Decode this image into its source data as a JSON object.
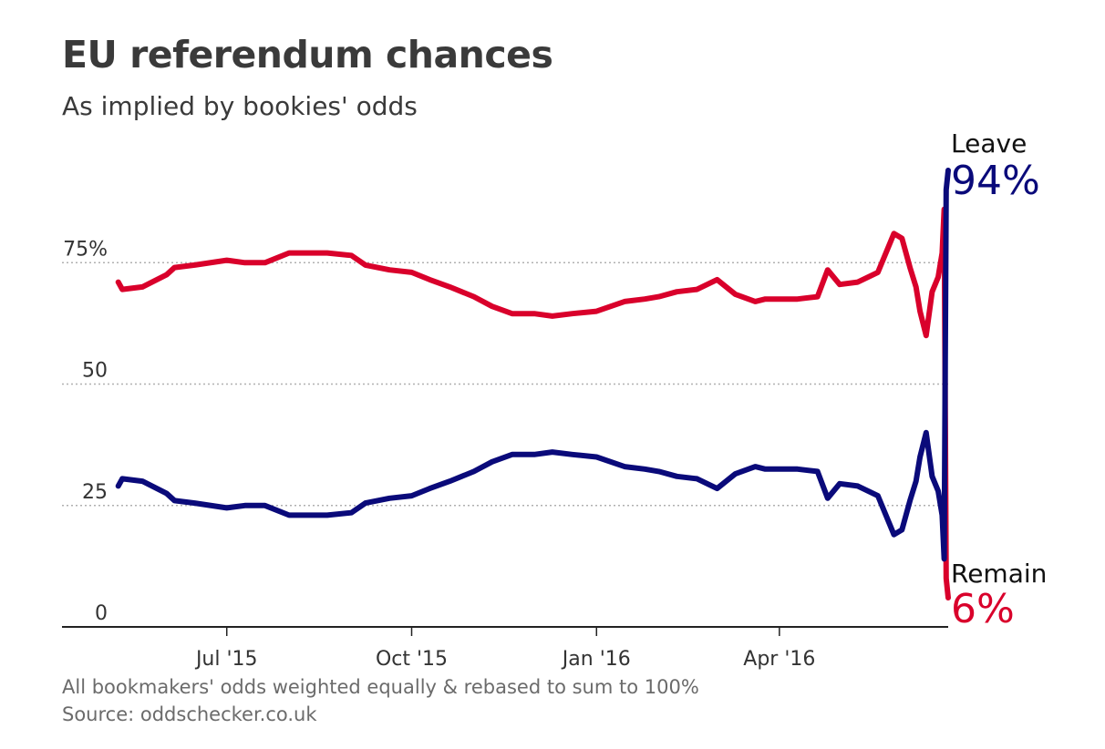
{
  "title": "EU referendum chances",
  "subtitle": "As implied by bookies' odds",
  "footnote": "All bookmakers' odds weighted equally & rebased to sum to 100%",
  "source": "Source: oddschecker.co.uk",
  "colors": {
    "leave": "#0a0a7a",
    "remain": "#d9002b",
    "grid": "#b0b0b0",
    "axis": "#222222"
  },
  "chart_data": {
    "type": "line",
    "title": "EU referendum chances",
    "subtitle": "As implied by bookies' odds",
    "xlabel": "",
    "ylabel": "",
    "x_type": "date",
    "xlim": [
      "2015-04-10",
      "2016-06-24"
    ],
    "ylim": [
      0,
      100
    ],
    "grid": true,
    "yticks": [
      {
        "value": 0,
        "label": "0"
      },
      {
        "value": 25,
        "label": "25"
      },
      {
        "value": 50,
        "label": "50"
      },
      {
        "value": 75,
        "label": "75%"
      }
    ],
    "xticks": [
      {
        "value": "2015-07-01",
        "label": "Jul '15"
      },
      {
        "value": "2015-10-01",
        "label": "Oct '15"
      },
      {
        "value": "2016-01-01",
        "label": "Jan '16"
      },
      {
        "value": "2016-04-01",
        "label": "Apr '16"
      }
    ],
    "x": [
      "2015-05-08",
      "2015-05-10",
      "2015-05-20",
      "2015-06-01",
      "2015-06-05",
      "2015-06-15",
      "2015-07-01",
      "2015-07-10",
      "2015-07-20",
      "2015-08-01",
      "2015-08-10",
      "2015-08-20",
      "2015-09-01",
      "2015-09-08",
      "2015-09-20",
      "2015-10-01",
      "2015-10-10",
      "2015-10-20",
      "2015-11-01",
      "2015-11-10",
      "2015-11-20",
      "2015-12-01",
      "2015-12-10",
      "2015-12-20",
      "2016-01-01",
      "2016-01-15",
      "2016-01-25",
      "2016-02-01",
      "2016-02-10",
      "2016-02-20",
      "2016-03-01",
      "2016-03-10",
      "2016-03-20",
      "2016-03-25",
      "2016-04-01",
      "2016-04-10",
      "2016-04-20",
      "2016-04-25",
      "2016-05-01",
      "2016-05-10",
      "2016-05-20",
      "2016-05-28",
      "2016-06-01",
      "2016-06-05",
      "2016-06-08",
      "2016-06-10",
      "2016-06-13",
      "2016-06-16",
      "2016-06-19",
      "2016-06-21",
      "2016-06-22",
      "2016-06-23",
      "2016-06-24"
    ],
    "series": [
      {
        "name": "Remain",
        "color": "#d9002b",
        "values": [
          71,
          69.5,
          70,
          72.5,
          74,
          74.5,
          75.5,
          75,
          75,
          77,
          77,
          77,
          76.5,
          74.5,
          73.5,
          73,
          71.5,
          70,
          68,
          66,
          64.5,
          64.5,
          64,
          64.5,
          65,
          67,
          67.5,
          68,
          69,
          69.5,
          71.5,
          68.5,
          67,
          67.5,
          67.5,
          67.5,
          68,
          73.5,
          70.5,
          71,
          73,
          81,
          80,
          74,
          70,
          65,
          60,
          69,
          72,
          77,
          86,
          10,
          6
        ]
      },
      {
        "name": "Leave",
        "color": "#0a0a7a",
        "values": [
          29,
          30.5,
          30,
          27.5,
          26,
          25.5,
          24.5,
          25,
          25,
          23,
          23,
          23,
          23.5,
          25.5,
          26.5,
          27,
          28.5,
          30,
          32,
          34,
          35.5,
          35.5,
          36,
          35.5,
          35,
          33,
          32.5,
          32,
          31,
          30.5,
          28.5,
          31.5,
          33,
          32.5,
          32.5,
          32.5,
          32,
          26.5,
          29.5,
          29,
          27,
          19,
          20,
          26,
          30,
          35,
          40,
          31,
          28,
          23,
          14,
          90,
          94
        ]
      }
    ],
    "end_labels": [
      {
        "series": "Leave",
        "name": "Leave",
        "value_label": "94%"
      },
      {
        "series": "Remain",
        "name": "Remain",
        "value_label": "6%"
      }
    ]
  }
}
